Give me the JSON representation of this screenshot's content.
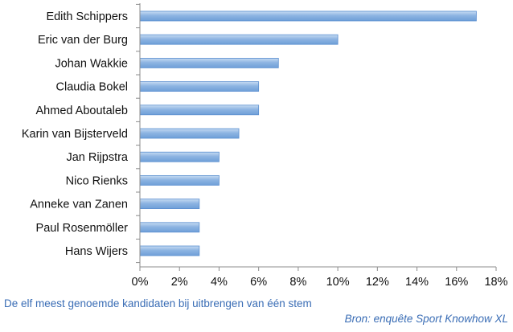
{
  "chart_data": {
    "type": "bar",
    "orientation": "horizontal",
    "categories": [
      "Edith Schippers",
      "Eric van der Burg",
      "Johan Wakkie",
      "Claudia Bokel",
      "Ahmed Aboutaleb",
      "Karin van Bijsterveld",
      "Jan Rijpstra",
      "Nico Rienks",
      "Anneke van Zanen",
      "Paul Rosenmöller",
      "Hans Wijers"
    ],
    "values": [
      17,
      10,
      7,
      6,
      6,
      5,
      4,
      4,
      3,
      3,
      3
    ],
    "value_unit": "%",
    "xlim": [
      0,
      18
    ],
    "x_ticks": [
      "0%",
      "2%",
      "4%",
      "6%",
      "8%",
      "10%",
      "12%",
      "14%",
      "16%",
      "18%"
    ],
    "bar_color": "#8db4e2",
    "bar_border_color": "#5b8fd0",
    "grid": false,
    "legend": "none",
    "caption": "De elf meest genoemde kandidaten bij uitbrengen van één stem",
    "source": "Bron: enquête Sport Knowhow XL"
  }
}
